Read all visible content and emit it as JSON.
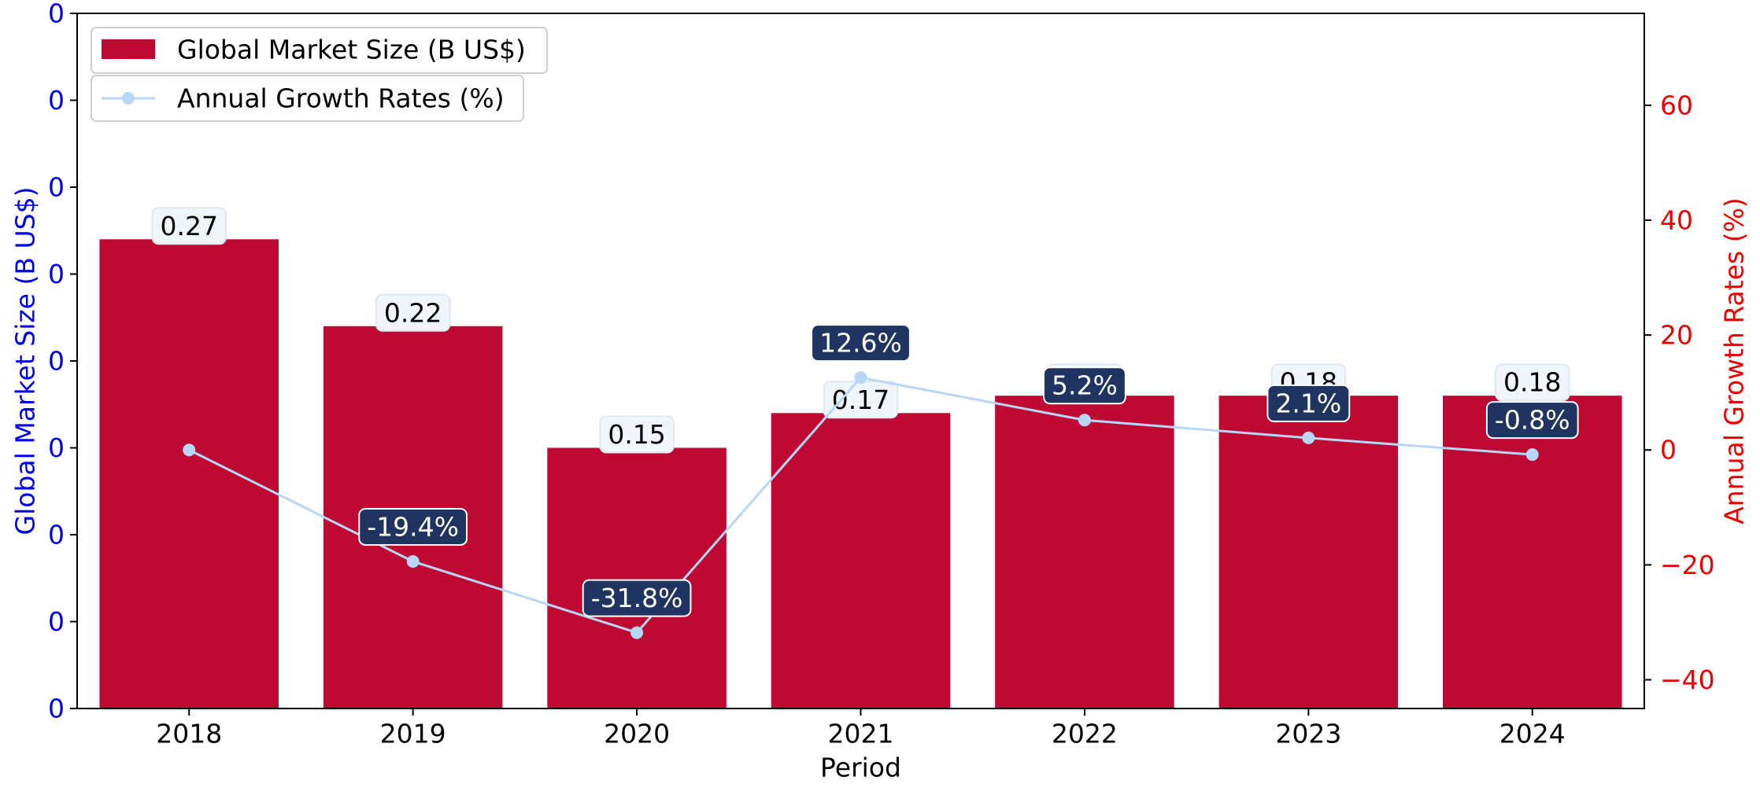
{
  "chart_data": {
    "type": "bar",
    "categories": [
      "2018",
      "2019",
      "2020",
      "2021",
      "2022",
      "2023",
      "2024"
    ],
    "xlabel": "Period",
    "ylabel_left": "Global Market Size (B US$)",
    "ylabel_right": "Annual Growth Rates (%)",
    "ylim_left": [
      0,
      0.4
    ],
    "ylim_right": [
      -45,
      76
    ],
    "left_tick_values": [
      0,
      0.05,
      0.1,
      0.15,
      0.2,
      0.25,
      0.3,
      0.35,
      0.4
    ],
    "left_tick_labels": [
      "0",
      "0",
      "0",
      "0",
      "0",
      "0",
      "0",
      "0",
      "0"
    ],
    "right_tick_values": [
      -40,
      -20,
      0,
      20,
      40,
      60
    ],
    "right_tick_labels": [
      "−40",
      "−20",
      "0",
      "20",
      "40",
      "60"
    ],
    "grid": false,
    "legend_placement": "top-left",
    "series": [
      {
        "name": "Global Market Size (B US$)",
        "type": "bar",
        "axis": "left",
        "color": "#be0a32",
        "values": [
          0.27,
          0.22,
          0.15,
          0.17,
          0.18,
          0.18,
          0.18
        ],
        "labels": [
          "0.27",
          "0.22",
          "0.15",
          "0.17",
          "0.18",
          "0.18",
          "0.18"
        ]
      },
      {
        "name": "Annual Growth Rates (%)",
        "type": "line",
        "axis": "right",
        "color": "#b8d6f5",
        "values": [
          0,
          -19.4,
          -31.8,
          12.6,
          5.2,
          2.1,
          -0.8
        ],
        "labels": [
          "",
          "-19.4%",
          "-31.8%",
          "12.6%",
          "5.2%",
          "2.1%",
          "-0.8%"
        ]
      }
    ],
    "colors": {
      "left_axis": "#0000ee",
      "right_axis": "#ee0000",
      "bar_label_box": "#f0f6fc",
      "growth_label_box": "#1f3461"
    }
  }
}
